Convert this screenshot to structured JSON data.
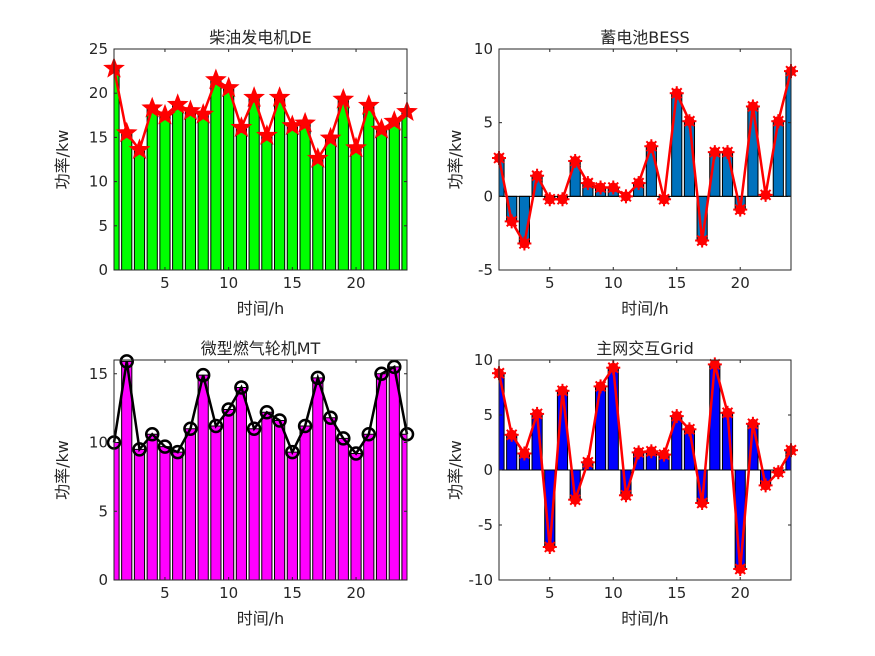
{
  "chart_data": [
    {
      "type": "bar",
      "title": "柴油发电机DE",
      "xlabel": "时间/h",
      "ylabel": "功率/kw",
      "xlim": [
        1,
        24
      ],
      "ylim": [
        0,
        25
      ],
      "xticks": [
        5,
        10,
        15,
        20
      ],
      "yticks": [
        0,
        5,
        10,
        15,
        20,
        25
      ],
      "bar_color": "#00ff00",
      "line_color": "#ff0000",
      "marker": "star",
      "x": [
        1,
        2,
        3,
        4,
        5,
        6,
        7,
        8,
        9,
        10,
        11,
        12,
        13,
        14,
        15,
        16,
        17,
        18,
        19,
        20,
        21,
        22,
        23,
        24
      ],
      "values": [
        22.8,
        15.5,
        13.6,
        18.3,
        17.5,
        18.7,
        18.0,
        17.6,
        21.5,
        20.6,
        16.1,
        19.5,
        15.2,
        19.5,
        16.3,
        16.6,
        12.6,
        14.9,
        19.3,
        13.8,
        18.6,
        15.9,
        16.8,
        17.9
      ]
    },
    {
      "type": "bar",
      "title": "蓄电池BESS",
      "xlabel": "时间/h",
      "ylabel": "功率/kw",
      "xlim": [
        1,
        24
      ],
      "ylim": [
        -5,
        10
      ],
      "xticks": [
        5,
        10,
        15,
        20
      ],
      "yticks": [
        -5,
        0,
        5,
        10
      ],
      "bar_color": "#0072bd",
      "line_color": "#ff0000",
      "marker": "asterisk",
      "x": [
        1,
        2,
        3,
        4,
        5,
        6,
        7,
        8,
        9,
        10,
        11,
        12,
        13,
        14,
        15,
        16,
        17,
        18,
        19,
        20,
        21,
        22,
        23,
        24
      ],
      "values": [
        2.6,
        -1.7,
        -3.2,
        1.4,
        -0.2,
        -0.2,
        2.4,
        0.9,
        0.6,
        0.6,
        0.0,
        0.9,
        3.4,
        -0.2,
        7.0,
        5.1,
        -3.0,
        3.0,
        3.0,
        -0.9,
        6.1,
        0.1,
        5.1,
        8.5
      ]
    },
    {
      "type": "bar",
      "title": "微型燃气轮机MT",
      "xlabel": "时间/h",
      "ylabel": "功率/kw",
      "xlim": [
        1,
        24
      ],
      "ylim": [
        0,
        16
      ],
      "xticks": [
        5,
        10,
        15,
        20
      ],
      "yticks": [
        0,
        5,
        10,
        15
      ],
      "bar_color": "#ff00ff",
      "line_color": "#000000",
      "marker": "circle",
      "x": [
        1,
        2,
        3,
        4,
        5,
        6,
        7,
        8,
        9,
        10,
        11,
        12,
        13,
        14,
        15,
        16,
        17,
        18,
        19,
        20,
        21,
        22,
        23,
        24
      ],
      "values": [
        10.0,
        15.9,
        9.5,
        10.6,
        9.7,
        9.3,
        11.0,
        14.9,
        11.2,
        12.4,
        14.0,
        11.0,
        12.2,
        11.6,
        9.3,
        11.2,
        14.7,
        11.8,
        10.3,
        9.2,
        10.6,
        15.0,
        15.5,
        10.6
      ]
    },
    {
      "type": "bar",
      "title": "主网交互Grid",
      "xlabel": "时间/h",
      "ylabel": "功率/kw",
      "xlim": [
        1,
        24
      ],
      "ylim": [
        -10,
        10
      ],
      "xticks": [
        5,
        10,
        15,
        20
      ],
      "yticks": [
        -10,
        -5,
        0,
        5,
        10
      ],
      "bar_color": "#0000ff",
      "line_color": "#ff0000",
      "marker": "asterisk",
      "x": [
        1,
        2,
        3,
        4,
        5,
        6,
        7,
        8,
        9,
        10,
        11,
        12,
        13,
        14,
        15,
        16,
        17,
        18,
        19,
        20,
        21,
        22,
        23,
        24
      ],
      "values": [
        8.8,
        3.2,
        1.5,
        5.1,
        -7.0,
        7.2,
        -2.7,
        0.7,
        7.6,
        9.3,
        -2.3,
        1.6,
        1.7,
        1.4,
        4.9,
        3.7,
        -3.0,
        9.6,
        5.2,
        -9.0,
        4.2,
        -1.4,
        -0.2,
        1.8
      ]
    }
  ]
}
